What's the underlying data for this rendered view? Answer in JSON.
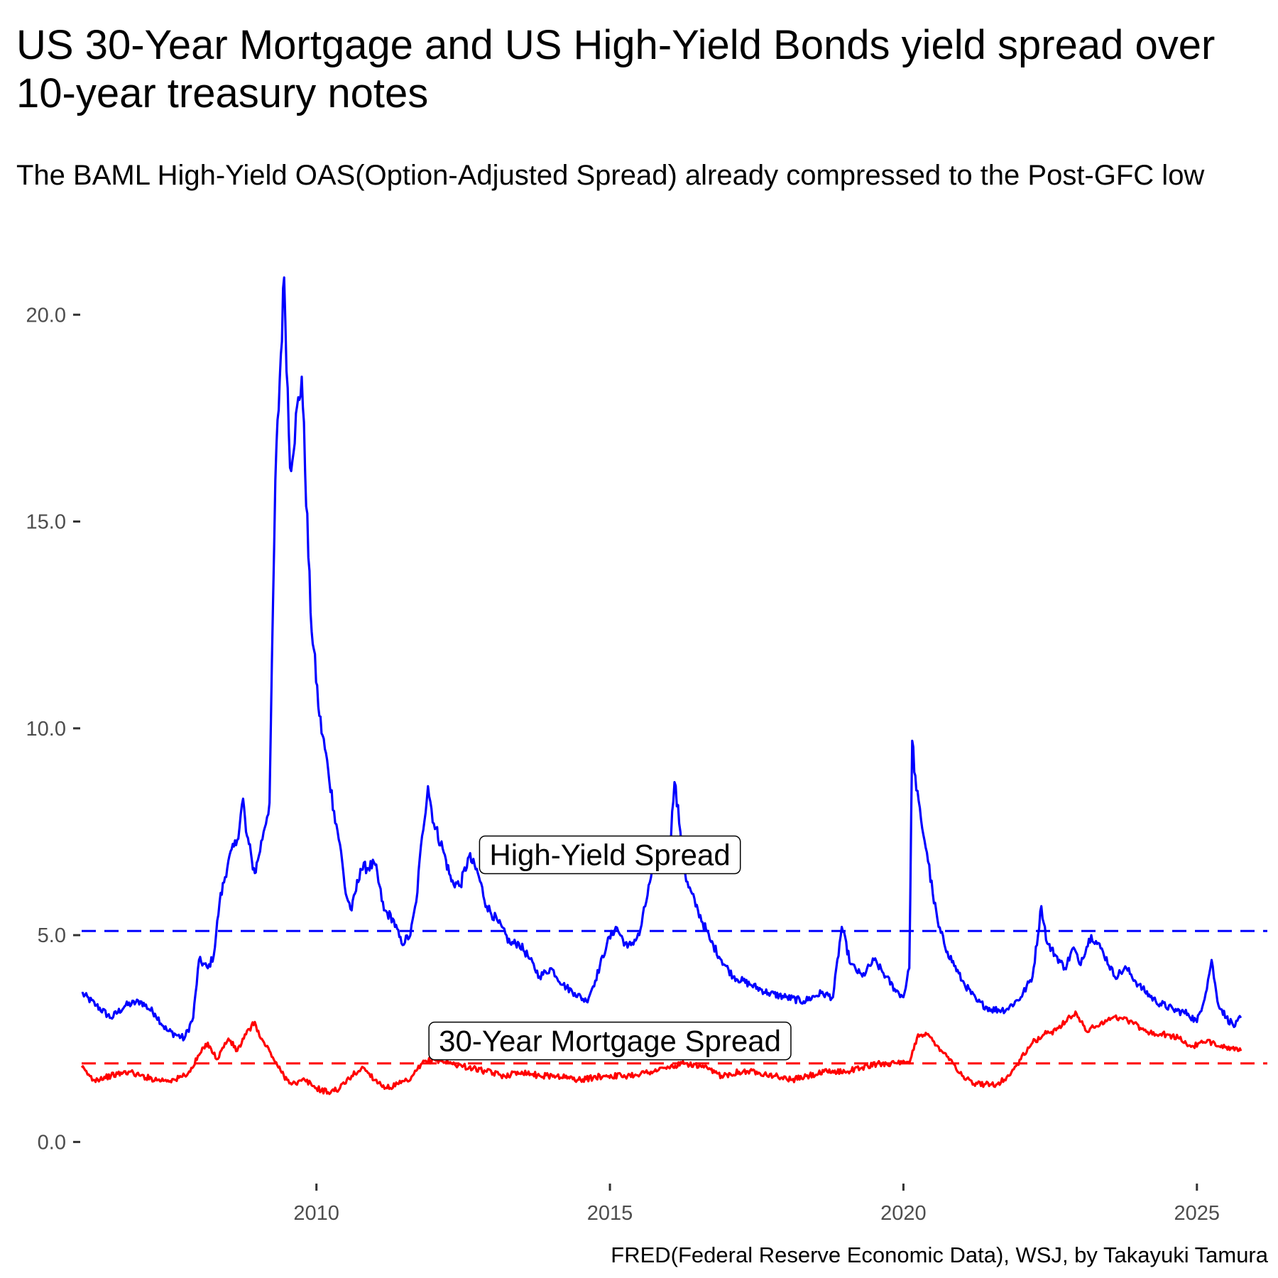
{
  "chart_data": {
    "type": "line",
    "title": "US 30-Year Mortgage and US High-Yield Bonds yield spread over 10-year treasury notes",
    "subtitle": "The BAML High-Yield OAS(Option-Adjusted Spread) already compressed to the Post-GFC low",
    "caption": "FRED(Federal Reserve Economic Data), WSJ, by Takayuki Tamura",
    "xlabel": "",
    "ylabel": "",
    "xlim": [
      2006.0,
      2026.2
    ],
    "ylim": [
      -0.8,
      21.0
    ],
    "x_ticks": [
      2010,
      2015,
      2020,
      2025
    ],
    "x_tick_labels": [
      "2010",
      "2015",
      "2020",
      "2025"
    ],
    "y_ticks": [
      0,
      5,
      10,
      15,
      20
    ],
    "y_tick_labels": [
      "0.0",
      "5.0",
      "10.0",
      "15.0",
      "20.0"
    ],
    "grid": false,
    "legend": "none",
    "series": [
      {
        "color": "#0000ff",
        "x": [
          2006.0,
          2006.25,
          2006.5,
          2006.75,
          2007.0,
          2007.25,
          2007.45,
          2007.6,
          2007.75,
          2007.9,
          2008.0,
          2008.15,
          2008.25,
          2008.35,
          2008.5,
          2008.65,
          2008.75,
          2008.8,
          2008.85,
          2008.9,
          2008.95,
          2009.0,
          2009.1,
          2009.2,
          2009.3,
          2009.45,
          2009.55,
          2009.75,
          2009.9,
          2010.05,
          2010.2,
          2010.3,
          2010.4,
          2010.5,
          2010.6,
          2010.75,
          2011.0,
          2011.15,
          2011.3,
          2011.45,
          2011.6,
          2011.7,
          2011.8,
          2011.9,
          2012.0,
          2012.15,
          2012.3,
          2012.45,
          2012.6,
          2012.75,
          2012.9,
          2013.1,
          2013.3,
          2013.45,
          2013.6,
          2013.8,
          2014.0,
          2014.2,
          2014.4,
          2014.6,
          2014.75,
          2014.95,
          2015.1,
          2015.3,
          2015.5,
          2015.7,
          2015.85,
          2016.0,
          2016.1,
          2016.2,
          2016.3,
          2016.5,
          2016.7,
          2016.9,
          2017.1,
          2017.4,
          2017.7,
          2018.0,
          2018.3,
          2018.6,
          2018.8,
          2018.95,
          2019.1,
          2019.3,
          2019.5,
          2019.7,
          2019.85,
          2020.0,
          2020.1,
          2020.15,
          2020.22,
          2020.3,
          2020.4,
          2020.5,
          2020.6,
          2020.75,
          2021.0,
          2021.25,
          2021.5,
          2021.75,
          2022.0,
          2022.2,
          2022.35,
          2022.45,
          2022.6,
          2022.75,
          2022.9,
          2023.0,
          2023.2,
          2023.4,
          2023.6,
          2023.8,
          2024.0,
          2024.3,
          2024.6,
          2024.85,
          2025.0,
          2025.15,
          2025.25,
          2025.35,
          2025.5,
          2025.65,
          2025.75
        ],
        "values": [
          3.6,
          3.3,
          3.0,
          3.3,
          3.4,
          3.1,
          2.7,
          2.6,
          2.5,
          3.0,
          4.4,
          4.2,
          4.5,
          5.8,
          6.8,
          7.3,
          8.3,
          7.5,
          7.2,
          6.8,
          6.5,
          6.8,
          7.5,
          8.2,
          16.0,
          20.9,
          16.3,
          18.5,
          12.8,
          10.3,
          9.0,
          8.0,
          7.2,
          6.0,
          5.6,
          6.6,
          6.7,
          5.6,
          5.4,
          4.8,
          5.0,
          5.8,
          7.4,
          8.6,
          7.7,
          7.1,
          6.3,
          6.2,
          6.9,
          6.5,
          5.7,
          5.3,
          4.8,
          4.8,
          4.5,
          4.0,
          4.2,
          3.8,
          3.6,
          3.4,
          3.9,
          4.8,
          5.2,
          4.7,
          5.0,
          6.4,
          7.0,
          6.7,
          8.7,
          7.5,
          6.3,
          5.6,
          4.9,
          4.4,
          4.0,
          3.8,
          3.6,
          3.5,
          3.4,
          3.6,
          3.5,
          5.2,
          4.3,
          4.0,
          4.4,
          4.0,
          3.7,
          3.5,
          4.2,
          9.7,
          8.5,
          7.8,
          7.0,
          6.0,
          5.2,
          4.6,
          3.9,
          3.4,
          3.2,
          3.2,
          3.5,
          4.0,
          5.7,
          4.8,
          4.5,
          4.2,
          4.7,
          4.3,
          5.0,
          4.6,
          4.0,
          4.2,
          3.8,
          3.4,
          3.2,
          3.1,
          2.9,
          3.6,
          4.4,
          3.4,
          3.0,
          2.8,
          3.0
        ]
      },
      {
        "color": "#ff0000",
        "x": [
          2006.0,
          2006.2,
          2006.5,
          2006.8,
          2007.0,
          2007.3,
          2007.6,
          2007.85,
          2008.0,
          2008.15,
          2008.3,
          2008.5,
          2008.65,
          2008.8,
          2008.95,
          2009.05,
          2009.2,
          2009.35,
          2009.5,
          2009.65,
          2009.8,
          2010.0,
          2010.2,
          2010.4,
          2010.6,
          2010.8,
          2011.0,
          2011.2,
          2011.4,
          2011.6,
          2011.8,
          2012.0,
          2012.3,
          2012.6,
          2012.9,
          2013.2,
          2013.5,
          2013.8,
          2014.1,
          2014.5,
          2014.9,
          2015.3,
          2015.7,
          2016.0,
          2016.3,
          2016.6,
          2016.9,
          2017.2,
          2017.5,
          2017.8,
          2018.1,
          2018.4,
          2018.7,
          2019.0,
          2019.3,
          2019.6,
          2019.9,
          2020.1,
          2020.25,
          2020.4,
          2020.6,
          2020.8,
          2021.0,
          2021.2,
          2021.4,
          2021.6,
          2021.8,
          2022.0,
          2022.2,
          2022.4,
          2022.6,
          2022.8,
          2022.95,
          2023.1,
          2023.3,
          2023.5,
          2023.7,
          2023.9,
          2024.1,
          2024.3,
          2024.5,
          2024.7,
          2024.9,
          2025.1,
          2025.3,
          2025.5,
          2025.7,
          2025.75
        ],
        "values": [
          1.8,
          1.5,
          1.6,
          1.7,
          1.6,
          1.5,
          1.5,
          1.7,
          2.1,
          2.4,
          2.0,
          2.5,
          2.2,
          2.6,
          2.9,
          2.5,
          2.2,
          1.8,
          1.5,
          1.4,
          1.5,
          1.3,
          1.2,
          1.3,
          1.6,
          1.8,
          1.5,
          1.3,
          1.4,
          1.5,
          1.9,
          2.0,
          1.9,
          1.8,
          1.7,
          1.6,
          1.7,
          1.6,
          1.6,
          1.5,
          1.6,
          1.6,
          1.7,
          1.8,
          1.9,
          1.8,
          1.6,
          1.7,
          1.7,
          1.6,
          1.5,
          1.6,
          1.7,
          1.7,
          1.8,
          1.9,
          1.9,
          1.9,
          2.6,
          2.6,
          2.3,
          2.0,
          1.6,
          1.4,
          1.4,
          1.4,
          1.6,
          2.0,
          2.4,
          2.6,
          2.7,
          3.0,
          3.1,
          2.7,
          2.8,
          3.0,
          3.0,
          2.9,
          2.7,
          2.6,
          2.6,
          2.5,
          2.3,
          2.4,
          2.4,
          2.3,
          2.2,
          2.2
        ]
      }
    ],
    "reference_lines": [
      {
        "value": 5.1,
        "color": "#0000ff",
        "style": "dashed"
      },
      {
        "value": 1.9,
        "color": "#ff0000",
        "style": "dashed"
      }
    ],
    "annotations": [
      {
        "text": "High-Yield Spread",
        "x": 2015.0,
        "y": 6.95
      },
      {
        "text": "30-Year Mortgage Spread",
        "x": 2015.0,
        "y": 2.45
      }
    ]
  }
}
